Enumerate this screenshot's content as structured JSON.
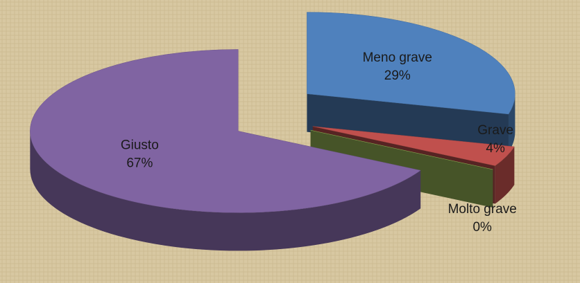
{
  "chart_data": {
    "type": "pie",
    "categories": [
      "Meno grave",
      "Grave",
      "Molto grave",
      "Giusto"
    ],
    "values": [
      29,
      4,
      0,
      67
    ],
    "value_labels": [
      "29%",
      "4%",
      "0%",
      "67%"
    ],
    "colors": [
      "#4f81bd",
      "#c0504d",
      "#9bbb59",
      "#8064a2"
    ]
  }
}
